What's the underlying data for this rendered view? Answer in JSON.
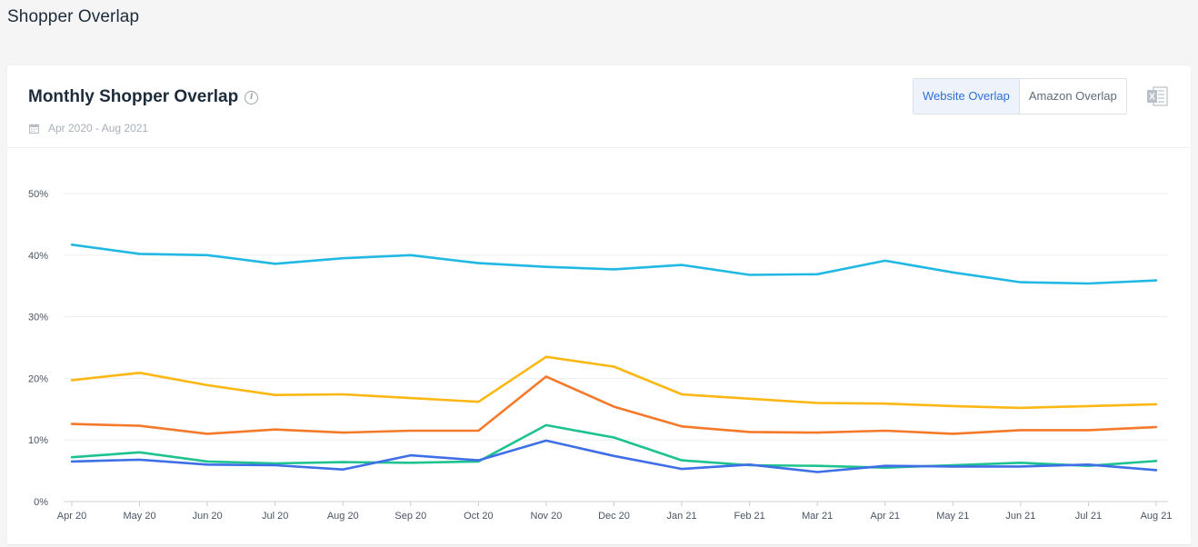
{
  "page": {
    "title": "Shopper Overlap"
  },
  "card": {
    "title": "Monthly Shopper Overlap",
    "date_range": "Apr 2020 - Aug 2021",
    "toggle": {
      "website": "Website Overlap",
      "amazon": "Amazon Overlap",
      "active": "website"
    }
  },
  "icons": {
    "info": "info-icon",
    "calendar": "calendar-icon",
    "excel": "excel-export-icon"
  },
  "chart_data": {
    "type": "line",
    "title": "Monthly Shopper Overlap",
    "xlabel": "",
    "ylabel": "",
    "categories": [
      "Apr 20",
      "May 20",
      "Jun 20",
      "Jul 20",
      "Aug 20",
      "Sep 20",
      "Oct 20",
      "Nov 20",
      "Dec 20",
      "Jan 21",
      "Feb 21",
      "Mar 21",
      "Apr 21",
      "May 21",
      "Jun 21",
      "Jul 21",
      "Aug 21"
    ],
    "ylim": [
      0,
      50
    ],
    "yticks": [
      0,
      10,
      20,
      30,
      40,
      50
    ],
    "ytick_labels": [
      "0%",
      "10%",
      "20%",
      "30%",
      "40%",
      "50%"
    ],
    "grid": true,
    "series": [
      {
        "color": "#22b8e4",
        "values": [
          41.7,
          40.2,
          40.0,
          38.6,
          39.5,
          40.0,
          38.7,
          38.1,
          37.7,
          38.4,
          36.8,
          36.9,
          39.1,
          37.2,
          35.6,
          35.4,
          35.9
        ]
      },
      {
        "color": "#fbb714",
        "values": [
          19.7,
          20.9,
          18.9,
          17.3,
          17.4,
          16.8,
          16.2,
          23.5,
          21.9,
          17.4,
          16.7,
          16.0,
          15.9,
          15.5,
          15.2,
          15.5,
          15.8
        ]
      },
      {
        "color": "#f5792a",
        "values": [
          12.6,
          12.3,
          11.0,
          11.7,
          11.2,
          11.5,
          11.5,
          20.3,
          15.4,
          12.2,
          11.3,
          11.2,
          11.5,
          11.0,
          11.6,
          11.6,
          12.1
        ]
      },
      {
        "color": "#1dc28f",
        "values": [
          7.2,
          8.0,
          6.5,
          6.2,
          6.4,
          6.3,
          6.5,
          12.4,
          10.4,
          6.7,
          5.9,
          5.8,
          5.5,
          5.9,
          6.3,
          5.8,
          6.6
        ]
      },
      {
        "color": "#3f6fe6",
        "values": [
          6.5,
          6.8,
          6.0,
          5.9,
          5.2,
          7.5,
          6.7,
          9.9,
          7.4,
          5.3,
          6.0,
          4.8,
          5.8,
          5.7,
          5.7,
          6.0,
          5.1
        ]
      }
    ]
  }
}
